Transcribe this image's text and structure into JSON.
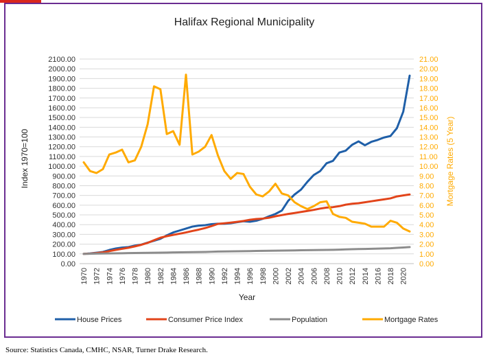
{
  "chart_data": {
    "type": "line",
    "title": "Halifax Regional Municipality",
    "xlabel": "Year",
    "ylabel": "Index 1970=100",
    "y2label": "Mortgage Rates (5 Year)",
    "x": [
      1970,
      1971,
      1972,
      1973,
      1974,
      1975,
      1976,
      1977,
      1978,
      1979,
      1980,
      1981,
      1982,
      1983,
      1984,
      1985,
      1986,
      1987,
      1988,
      1989,
      1990,
      1991,
      1992,
      1993,
      1994,
      1995,
      1996,
      1997,
      1998,
      1999,
      2000,
      2001,
      2002,
      2003,
      2004,
      2005,
      2006,
      2007,
      2008,
      2009,
      2010,
      2011,
      2012,
      2013,
      2014,
      2015,
      2016,
      2017,
      2018,
      2019,
      2020,
      2021
    ],
    "xlim": [
      1970,
      2021
    ],
    "ylim": [
      0,
      2100
    ],
    "y2lim": [
      0,
      21
    ],
    "xticks": [
      "1970",
      "1972",
      "1974",
      "1976",
      "1978",
      "1980",
      "1982",
      "1984",
      "1986",
      "1988",
      "1990",
      "1992",
      "1994",
      "1996",
      "1998",
      "2000",
      "2002",
      "2004",
      "2006",
      "2008",
      "2010",
      "2012",
      "2014",
      "2016",
      "2018",
      "2020"
    ],
    "yticks": [
      "0.00",
      "100.00",
      "200.00",
      "300.00",
      "400.00",
      "500.00",
      "600.00",
      "700.00",
      "800.00",
      "900.00",
      "1000.00",
      "1100.00",
      "1200.00",
      "1300.00",
      "1400.00",
      "1500.00",
      "1600.00",
      "1700.00",
      "1800.00",
      "1900.00",
      "2000.00",
      "2100.00"
    ],
    "y2ticks": [
      "0.00",
      "1.00",
      "2.00",
      "3.00",
      "4.00",
      "5.00",
      "6.00",
      "7.00",
      "8.00",
      "9.00",
      "10.00",
      "11.00",
      "12.00",
      "13.00",
      "14.00",
      "15.00",
      "16.00",
      "17.00",
      "18.00",
      "19.00",
      "20.00",
      "21.00"
    ],
    "grid": true,
    "legend_position": "bottom",
    "series": [
      {
        "name": "House Prices",
        "color": "#1f5fa8",
        "axis": "left",
        "values": [
          100,
          105,
          112,
          120,
          140,
          155,
          165,
          170,
          185,
          195,
          215,
          235,
          255,
          290,
          320,
          340,
          360,
          380,
          390,
          395,
          405,
          410,
          410,
          415,
          425,
          435,
          430,
          440,
          460,
          485,
          510,
          545,
          645,
          710,
          760,
          840,
          910,
          950,
          1030,
          1055,
          1140,
          1160,
          1220,
          1255,
          1215,
          1250,
          1270,
          1295,
          1310,
          1390,
          1560,
          1930
        ]
      },
      {
        "name": "Consumer Price Index",
        "color": "#e2441a",
        "axis": "left",
        "values": [
          100,
          103,
          108,
          116,
          128,
          141,
          152,
          163,
          177,
          193,
          213,
          240,
          266,
          282,
          295,
          307,
          320,
          335,
          349,
          365,
          385,
          408,
          414,
          421,
          429,
          438,
          450,
          458,
          462,
          471,
          486,
          498,
          510,
          520,
          530,
          541,
          552,
          565,
          575,
          580,
          590,
          605,
          615,
          620,
          630,
          640,
          650,
          660,
          670,
          690,
          700,
          710
        ]
      },
      {
        "name": "Population",
        "color": "#8c8c8c",
        "axis": "left",
        "values": [
          100,
          101,
          103,
          104,
          105,
          106,
          107,
          108,
          109,
          110,
          111,
          112,
          113,
          114,
          115,
          116,
          117,
          118,
          119,
          120,
          122,
          124,
          125,
          126,
          127,
          128,
          129,
          130,
          131,
          132,
          133,
          134,
          135,
          136,
          137,
          138,
          139,
          140,
          141,
          142,
          144,
          146,
          148,
          150,
          151,
          152,
          154,
          156,
          158,
          162,
          166,
          170
        ]
      },
      {
        "name": "Mortgage Rates",
        "color": "#ffaa00",
        "axis": "right",
        "values": [
          10.4,
          9.5,
          9.3,
          9.7,
          11.2,
          11.4,
          11.7,
          10.4,
          10.6,
          12.0,
          14.3,
          18.2,
          17.9,
          13.3,
          13.6,
          12.2,
          19.4,
          11.2,
          11.5,
          12.0,
          13.2,
          11.1,
          9.5,
          8.7,
          9.3,
          9.2,
          7.9,
          7.1,
          6.9,
          7.4,
          8.2,
          7.2,
          7.0,
          6.3,
          5.9,
          5.6,
          5.9,
          6.3,
          6.4,
          5.1,
          4.8,
          4.7,
          4.3,
          4.2,
          4.1,
          3.8,
          3.8,
          3.8,
          4.4,
          4.2,
          3.6,
          3.3
        ]
      }
    ]
  },
  "source": "Source: Statistics Canada, CMHC, NSAR, Turner Drake Research."
}
